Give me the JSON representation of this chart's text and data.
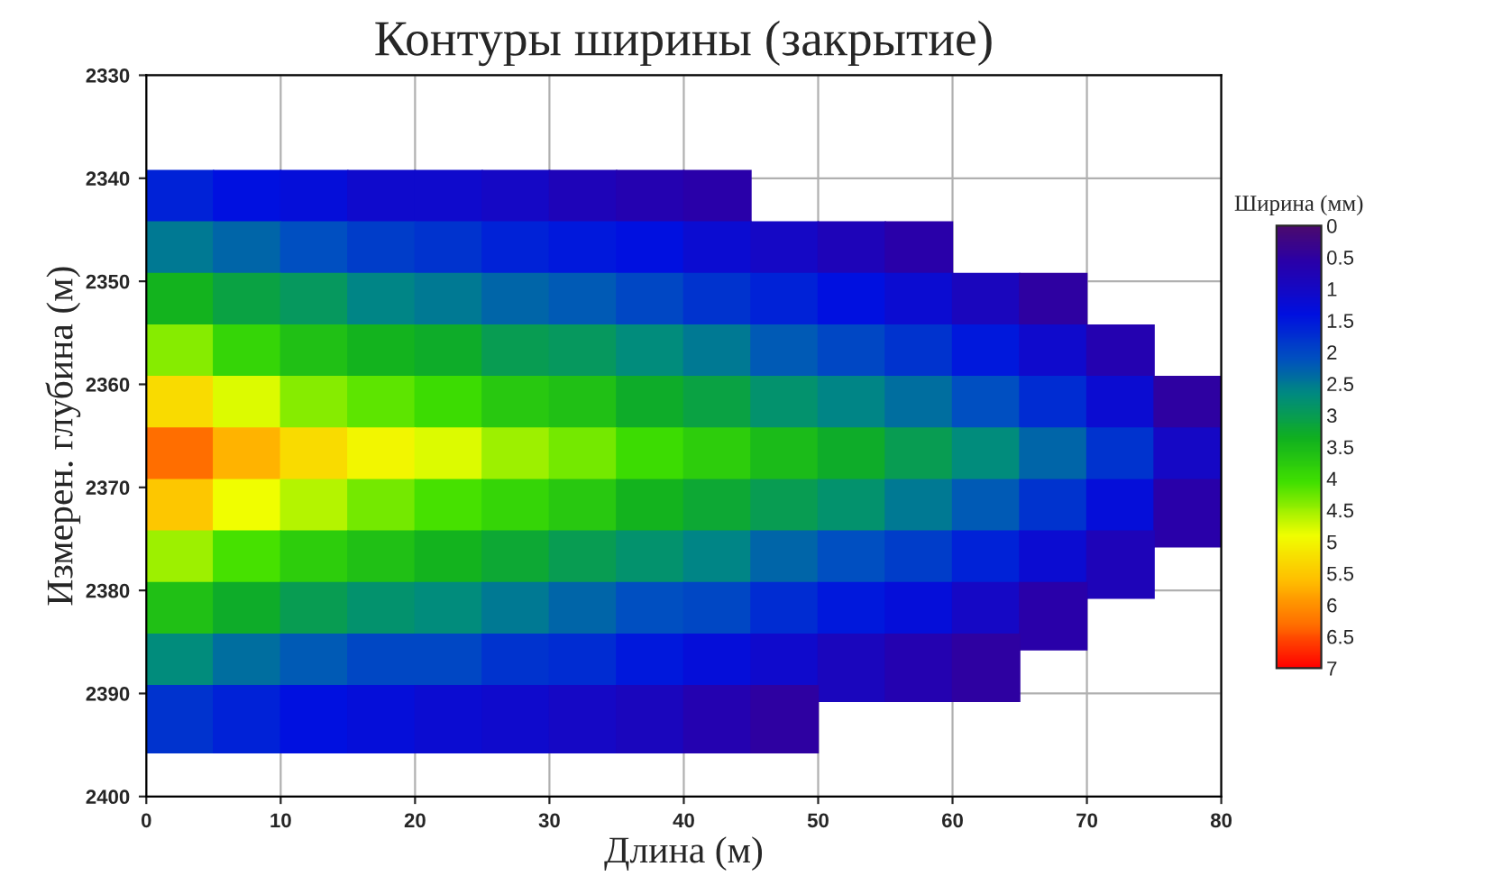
{
  "chart_data": {
    "type": "scatter",
    "title": "Контуры ширины (закрытие)",
    "xlabel": "Длина (м)",
    "ylabel": "Измерен. глубина (м)",
    "clabel": "Ширина (мм)",
    "xlim": [
      0,
      80
    ],
    "ylim": [
      2400,
      2330
    ],
    "xticks": [
      0,
      10,
      20,
      30,
      40,
      50,
      60,
      70,
      80
    ],
    "yticks": [
      2330,
      2340,
      2350,
      2360,
      2370,
      2380,
      2390,
      2400
    ],
    "clim": [
      0,
      7
    ],
    "cticks": [
      0,
      0.5,
      1,
      1.5,
      2,
      2.5,
      3,
      3.5,
      4,
      4.5,
      5,
      5.5,
      6,
      6.5,
      7
    ],
    "grid": true,
    "marker": "square",
    "x": [
      2.5,
      7.5,
      12.5,
      17.5,
      22.5,
      27.5,
      32.5,
      37.5,
      42.5,
      2.5,
      7.5,
      12.5,
      17.5,
      22.5,
      27.5,
      32.5,
      37.5,
      42.5,
      47.5,
      52.5,
      57.5,
      2.5,
      7.5,
      12.5,
      17.5,
      22.5,
      27.5,
      32.5,
      37.5,
      42.5,
      47.5,
      52.5,
      57.5,
      62.5,
      67.5,
      2.5,
      7.5,
      12.5,
      17.5,
      22.5,
      27.5,
      32.5,
      37.5,
      42.5,
      47.5,
      52.5,
      57.5,
      62.5,
      67.5,
      72.5,
      2.5,
      7.5,
      12.5,
      17.5,
      22.5,
      27.5,
      32.5,
      37.5,
      42.5,
      47.5,
      52.5,
      57.5,
      62.5,
      67.5,
      72.5,
      77.5,
      2.5,
      7.5,
      12.5,
      17.5,
      22.5,
      27.5,
      32.5,
      37.5,
      42.5,
      47.5,
      52.5,
      57.5,
      62.5,
      67.5,
      72.5,
      77.5,
      2.5,
      7.5,
      12.5,
      17.5,
      22.5,
      27.5,
      32.5,
      37.5,
      42.5,
      47.5,
      52.5,
      57.5,
      62.5,
      67.5,
      72.5,
      77.5,
      2.5,
      7.5,
      12.5,
      17.5,
      22.5,
      27.5,
      32.5,
      37.5,
      42.5,
      47.5,
      52.5,
      57.5,
      62.5,
      67.5,
      72.5,
      2.5,
      7.5,
      12.5,
      17.5,
      22.5,
      27.5,
      32.5,
      37.5,
      42.5,
      47.5,
      52.5,
      57.5,
      62.5,
      67.5,
      2.5,
      7.5,
      12.5,
      17.5,
      22.5,
      27.5,
      32.5,
      37.5,
      42.5,
      47.5,
      52.5,
      57.5,
      62.5,
      2.5,
      7.5,
      12.5,
      17.5,
      22.5,
      27.5,
      32.5,
      37.5,
      42.5,
      47.5
    ],
    "values": [
      2342.5,
      2342.5,
      2342.5,
      2342.5,
      2342.5,
      2342.5,
      2342.5,
      2342.5,
      2342.5,
      2347.5,
      2347.5,
      2347.5,
      2347.5,
      2347.5,
      2347.5,
      2347.5,
      2347.5,
      2347.5,
      2347.5,
      2347.5,
      2347.5,
      2352.5,
      2352.5,
      2352.5,
      2352.5,
      2352.5,
      2352.5,
      2352.5,
      2352.5,
      2352.5,
      2352.5,
      2352.5,
      2352.5,
      2352.5,
      2352.5,
      2357.5,
      2357.5,
      2357.5,
      2357.5,
      2357.5,
      2357.5,
      2357.5,
      2357.5,
      2357.5,
      2357.5,
      2357.5,
      2357.5,
      2357.5,
      2357.5,
      2357.5,
      2362.5,
      2362.5,
      2362.5,
      2362.5,
      2362.5,
      2362.5,
      2362.5,
      2362.5,
      2362.5,
      2362.5,
      2362.5,
      2362.5,
      2362.5,
      2362.5,
      2362.5,
      2362.5,
      2367.5,
      2367.5,
      2367.5,
      2367.5,
      2367.5,
      2367.5,
      2367.5,
      2367.5,
      2367.5,
      2367.5,
      2367.5,
      2367.5,
      2367.5,
      2367.5,
      2367.5,
      2367.5,
      2372.5,
      2372.5,
      2372.5,
      2372.5,
      2372.5,
      2372.5,
      2372.5,
      2372.5,
      2372.5,
      2372.5,
      2372.5,
      2372.5,
      2372.5,
      2372.5,
      2372.5,
      2372.5,
      2377.5,
      2377.5,
      2377.5,
      2377.5,
      2377.5,
      2377.5,
      2377.5,
      2377.5,
      2377.5,
      2377.5,
      2377.5,
      2377.5,
      2377.5,
      2377.5,
      2377.5,
      2382.5,
      2382.5,
      2382.5,
      2382.5,
      2382.5,
      2382.5,
      2382.5,
      2382.5,
      2382.5,
      2382.5,
      2382.5,
      2382.5,
      2382.5,
      2382.5,
      2387.5,
      2387.5,
      2387.5,
      2387.5,
      2387.5,
      2387.5,
      2387.5,
      2387.5,
      2387.5,
      2387.5,
      2387.5,
      2387.5,
      2387.5,
      2392.5,
      2392.5,
      2392.5,
      2392.5,
      2392.5,
      2392.5,
      2392.5,
      2392.5,
      2392.5,
      2392.5
    ],
    "cvalues": [
      1.6,
      1.4,
      1.3,
      1.1,
      1.1,
      1.0,
      0.8,
      0.7,
      0.6,
      2.5,
      2.3,
      2.1,
      1.9,
      1.8,
      1.6,
      1.5,
      1.4,
      1.2,
      1.0,
      0.8,
      0.6,
      3.4,
      3.1,
      2.9,
      2.6,
      2.5,
      2.3,
      2.2,
      2.0,
      1.8,
      1.6,
      1.4,
      1.2,
      0.9,
      0.5,
      4.4,
      3.9,
      3.6,
      3.4,
      3.3,
      3.0,
      2.9,
      2.7,
      2.5,
      2.2,
      2.0,
      1.8,
      1.5,
      1.1,
      0.7,
      5.3,
      4.8,
      4.4,
      4.2,
      4.0,
      3.7,
      3.6,
      3.3,
      3.1,
      2.8,
      2.6,
      2.4,
      2.1,
      1.7,
      1.2,
      0.5,
      6.3,
      5.7,
      5.3,
      5.0,
      4.8,
      4.5,
      4.3,
      4.0,
      3.8,
      3.5,
      3.3,
      3.0,
      2.7,
      2.3,
      1.8,
      1.0,
      5.5,
      4.9,
      4.6,
      4.3,
      4.1,
      3.9,
      3.7,
      3.4,
      3.2,
      3.0,
      2.8,
      2.5,
      2.2,
      1.8,
      1.3,
      0.6,
      4.5,
      4.1,
      3.8,
      3.6,
      3.4,
      3.2,
      3.0,
      2.8,
      2.6,
      2.3,
      2.1,
      1.9,
      1.6,
      1.2,
      0.8,
      3.6,
      3.3,
      3.0,
      2.8,
      2.7,
      2.5,
      2.3,
      2.1,
      2.0,
      1.7,
      1.5,
      1.3,
      1.0,
      0.6,
      2.7,
      2.4,
      2.2,
      2.0,
      2.0,
      1.8,
      1.7,
      1.5,
      1.3,
      1.1,
      0.9,
      0.7,
      0.5,
      1.8,
      1.6,
      1.4,
      1.3,
      1.2,
      1.1,
      1.0,
      0.9,
      0.7,
      0.5
    ]
  }
}
